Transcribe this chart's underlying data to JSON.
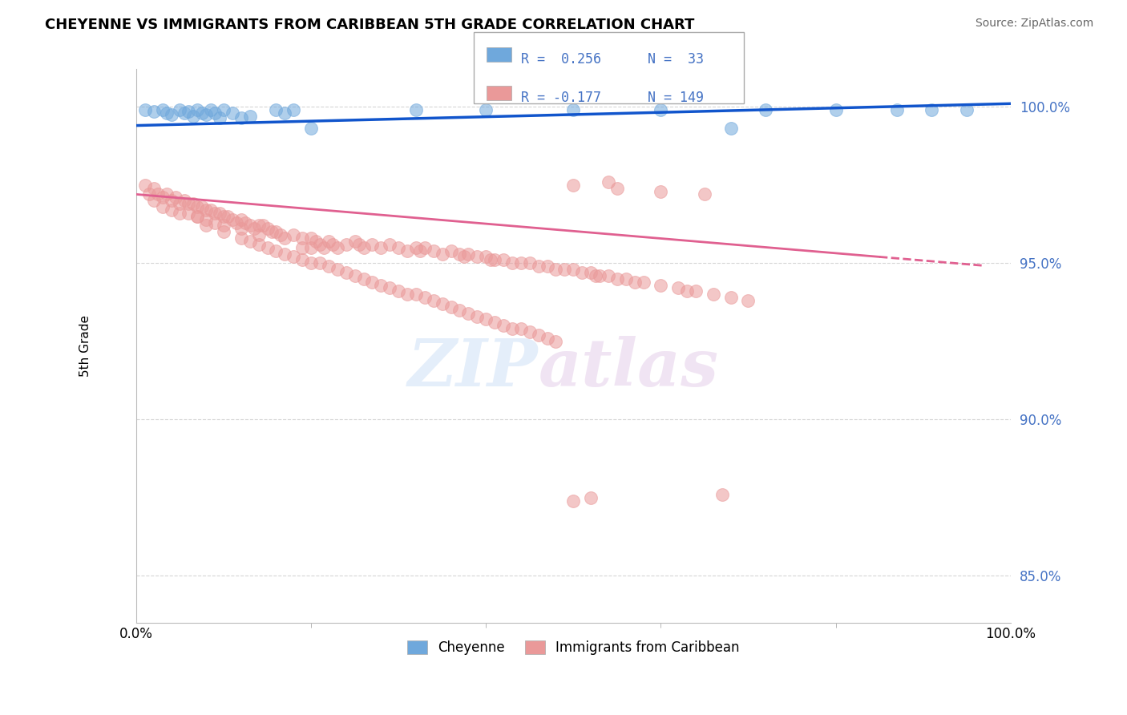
{
  "title": "CHEYENNE VS IMMIGRANTS FROM CARIBBEAN 5TH GRADE CORRELATION CHART",
  "source": "Source: ZipAtlas.com",
  "ylabel": "5th Grade",
  "ytick_values": [
    0.85,
    0.9,
    0.95,
    1.0
  ],
  "xlim": [
    0.0,
    1.0
  ],
  "ylim": [
    0.835,
    1.012
  ],
  "legend_label_blue": "Cheyenne",
  "legend_label_pink": "Immigrants from Caribbean",
  "blue_color": "#6fa8dc",
  "pink_color": "#ea9999",
  "blue_line_color": "#1155cc",
  "pink_line_color": "#e06090",
  "grid_color": "#cccccc",
  "blue_line_y0": 0.994,
  "blue_line_y1": 1.001,
  "pink_line_y0": 0.972,
  "pink_line_y1": 0.952,
  "pink_line_solid_end": 0.85,
  "pink_line_dash_end": 0.97,
  "blue_scatter_x": [
    0.01,
    0.02,
    0.03,
    0.035,
    0.04,
    0.05,
    0.055,
    0.06,
    0.065,
    0.07,
    0.075,
    0.08,
    0.085,
    0.09,
    0.095,
    0.1,
    0.11,
    0.12,
    0.13,
    0.16,
    0.17,
    0.18,
    0.2,
    0.32,
    0.4,
    0.5,
    0.6,
    0.68,
    0.72,
    0.8,
    0.87,
    0.91,
    0.95
  ],
  "blue_scatter_y": [
    0.999,
    0.9985,
    0.999,
    0.998,
    0.9975,
    0.999,
    0.998,
    0.9985,
    0.997,
    0.999,
    0.998,
    0.9975,
    0.999,
    0.998,
    0.9965,
    0.999,
    0.998,
    0.9965,
    0.997,
    0.999,
    0.998,
    0.999,
    0.993,
    0.999,
    0.999,
    0.999,
    0.999,
    0.993,
    0.999,
    0.999,
    0.999,
    0.999,
    0.999
  ],
  "pink_scatter_x": [
    0.01,
    0.015,
    0.02,
    0.02,
    0.025,
    0.03,
    0.03,
    0.035,
    0.04,
    0.04,
    0.045,
    0.05,
    0.05,
    0.055,
    0.06,
    0.06,
    0.065,
    0.07,
    0.07,
    0.075,
    0.08,
    0.08,
    0.085,
    0.09,
    0.09,
    0.095,
    0.1,
    0.1,
    0.105,
    0.11,
    0.115,
    0.12,
    0.12,
    0.125,
    0.13,
    0.135,
    0.14,
    0.14,
    0.145,
    0.15,
    0.155,
    0.16,
    0.165,
    0.17,
    0.18,
    0.19,
    0.19,
    0.2,
    0.2,
    0.205,
    0.21,
    0.215,
    0.22,
    0.225,
    0.23,
    0.24,
    0.25,
    0.255,
    0.26,
    0.27,
    0.28,
    0.29,
    0.3,
    0.31,
    0.32,
    0.325,
    0.33,
    0.34,
    0.35,
    0.36,
    0.37,
    0.375,
    0.38,
    0.39,
    0.4,
    0.405,
    0.41,
    0.42,
    0.43,
    0.44,
    0.45,
    0.46,
    0.47,
    0.48,
    0.49,
    0.5,
    0.51,
    0.52,
    0.525,
    0.53,
    0.54,
    0.55,
    0.56,
    0.57,
    0.58,
    0.6,
    0.62,
    0.63,
    0.64,
    0.66,
    0.68,
    0.7,
    0.07,
    0.08,
    0.1,
    0.12,
    0.13,
    0.14,
    0.15,
    0.16,
    0.17,
    0.18,
    0.19,
    0.2,
    0.21,
    0.22,
    0.23,
    0.24,
    0.25,
    0.26,
    0.27,
    0.28,
    0.29,
    0.3,
    0.31,
    0.32,
    0.33,
    0.34,
    0.35,
    0.36,
    0.37,
    0.38,
    0.39,
    0.4,
    0.41,
    0.42,
    0.43,
    0.44,
    0.45,
    0.46,
    0.47,
    0.48,
    0.5,
    0.52,
    0.54,
    0.5,
    0.55,
    0.6,
    0.65,
    0.67
  ],
  "pink_scatter_y": [
    0.975,
    0.972,
    0.974,
    0.97,
    0.972,
    0.971,
    0.968,
    0.972,
    0.97,
    0.967,
    0.971,
    0.969,
    0.966,
    0.97,
    0.969,
    0.966,
    0.969,
    0.968,
    0.965,
    0.968,
    0.967,
    0.964,
    0.967,
    0.966,
    0.963,
    0.966,
    0.965,
    0.962,
    0.965,
    0.964,
    0.963,
    0.964,
    0.961,
    0.963,
    0.962,
    0.961,
    0.962,
    0.959,
    0.962,
    0.961,
    0.96,
    0.96,
    0.959,
    0.958,
    0.959,
    0.958,
    0.955,
    0.958,
    0.955,
    0.957,
    0.956,
    0.955,
    0.957,
    0.956,
    0.955,
    0.956,
    0.957,
    0.956,
    0.955,
    0.956,
    0.955,
    0.956,
    0.955,
    0.954,
    0.955,
    0.954,
    0.955,
    0.954,
    0.953,
    0.954,
    0.953,
    0.952,
    0.953,
    0.952,
    0.952,
    0.951,
    0.951,
    0.951,
    0.95,
    0.95,
    0.95,
    0.949,
    0.949,
    0.948,
    0.948,
    0.948,
    0.947,
    0.947,
    0.946,
    0.946,
    0.946,
    0.945,
    0.945,
    0.944,
    0.944,
    0.943,
    0.942,
    0.941,
    0.941,
    0.94,
    0.939,
    0.938,
    0.965,
    0.962,
    0.96,
    0.958,
    0.957,
    0.956,
    0.955,
    0.954,
    0.953,
    0.952,
    0.951,
    0.95,
    0.95,
    0.949,
    0.948,
    0.947,
    0.946,
    0.945,
    0.944,
    0.943,
    0.942,
    0.941,
    0.94,
    0.94,
    0.939,
    0.938,
    0.937,
    0.936,
    0.935,
    0.934,
    0.933,
    0.932,
    0.931,
    0.93,
    0.929,
    0.929,
    0.928,
    0.927,
    0.926,
    0.925,
    0.874,
    0.875,
    0.976,
    0.975,
    0.974,
    0.973,
    0.972,
    0.876
  ]
}
